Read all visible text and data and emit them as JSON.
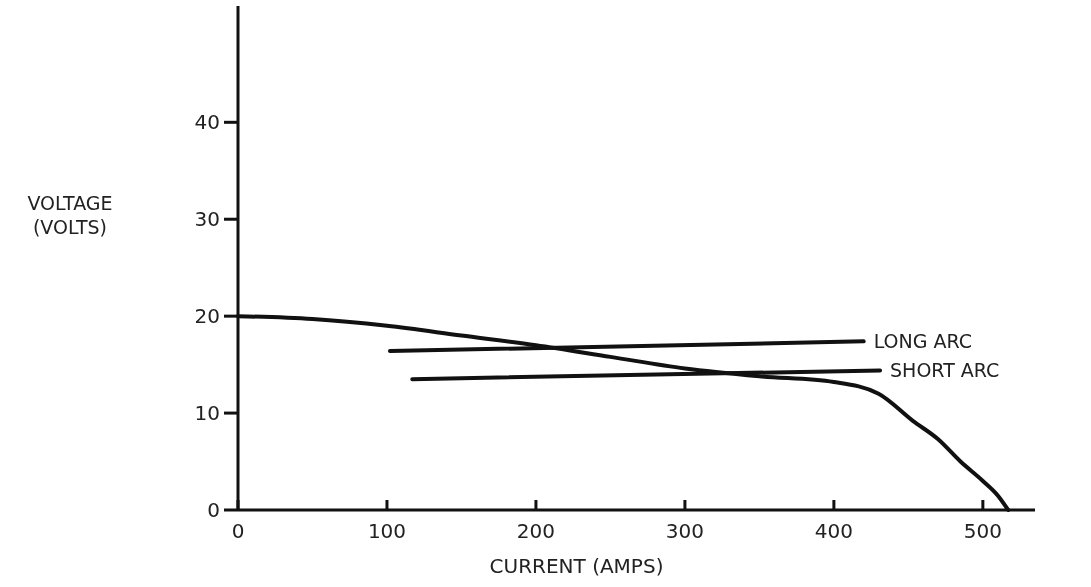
{
  "chart_data": {
    "type": "line",
    "xlabel": "CURRENT (AMPS)",
    "ylabel": "VOLTAGE\n(VOLTS)",
    "xlim": [
      0,
      535
    ],
    "ylim": [
      0,
      52
    ],
    "xticks": [
      0,
      100,
      200,
      300,
      400,
      500
    ],
    "yticks": [
      0,
      10,
      20,
      30,
      40
    ],
    "grid": false,
    "legend": false,
    "marker": "none",
    "line_style": "solid",
    "series": [
      {
        "color": "#111111",
        "x": [
          0,
          50,
          100,
          150,
          200,
          250,
          300,
          350,
          400,
          430,
          453,
          470,
          485,
          500,
          510,
          517
        ],
        "values": [
          20,
          19.7,
          19,
          18,
          17,
          15.8,
          14.6,
          13.8,
          13.2,
          12,
          9.2,
          7.3,
          5,
          3,
          1.5,
          0
        ]
      },
      {
        "name": "LONG ARC",
        "color": "#111111",
        "x": [
          102,
          420
        ],
        "values": [
          16.4,
          17.4
        ]
      },
      {
        "name": "SHORT ARC",
        "color": "#111111",
        "x": [
          117,
          431
        ],
        "values": [
          13.5,
          14.4
        ]
      }
    ]
  }
}
